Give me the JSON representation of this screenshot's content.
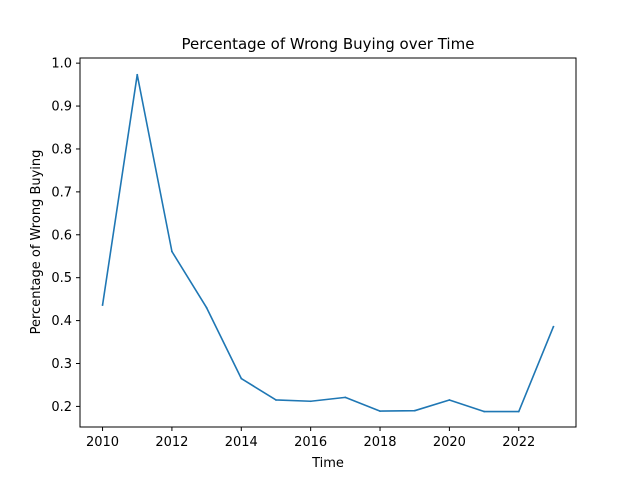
{
  "chart_data": {
    "type": "line",
    "title": "Percentage of Wrong Buying over Time",
    "xlabel": "Time",
    "ylabel": "Percentage of Wrong Buying",
    "xlim": [
      2009.35,
      2023.65
    ],
    "ylim": [
      0.152,
      1.012
    ],
    "x_ticks": [
      2010,
      2012,
      2014,
      2016,
      2018,
      2020,
      2022
    ],
    "y_ticks": [
      0.2,
      0.3,
      0.4,
      0.5,
      0.6,
      0.7,
      0.8,
      0.9,
      1.0
    ],
    "x_tick_labels": [
      "2010",
      "2012",
      "2014",
      "2016",
      "2018",
      "2020",
      "2022"
    ],
    "y_tick_labels": [
      "0.2",
      "0.3",
      "0.4",
      "0.5",
      "0.6",
      "0.7",
      "0.8",
      "0.9",
      "1.0"
    ],
    "grid": false,
    "series": [
      {
        "color": "#1f77b4",
        "x": [
          2010,
          2011,
          2012,
          2013,
          2014,
          2015,
          2016,
          2017,
          2018,
          2019,
          2020,
          2021,
          2022,
          2023
        ],
        "y": [
          0.436,
          0.973,
          0.561,
          0.43,
          0.265,
          0.215,
          0.212,
          0.221,
          0.189,
          0.19,
          0.215,
          0.188,
          0.188,
          0.386
        ]
      }
    ]
  }
}
